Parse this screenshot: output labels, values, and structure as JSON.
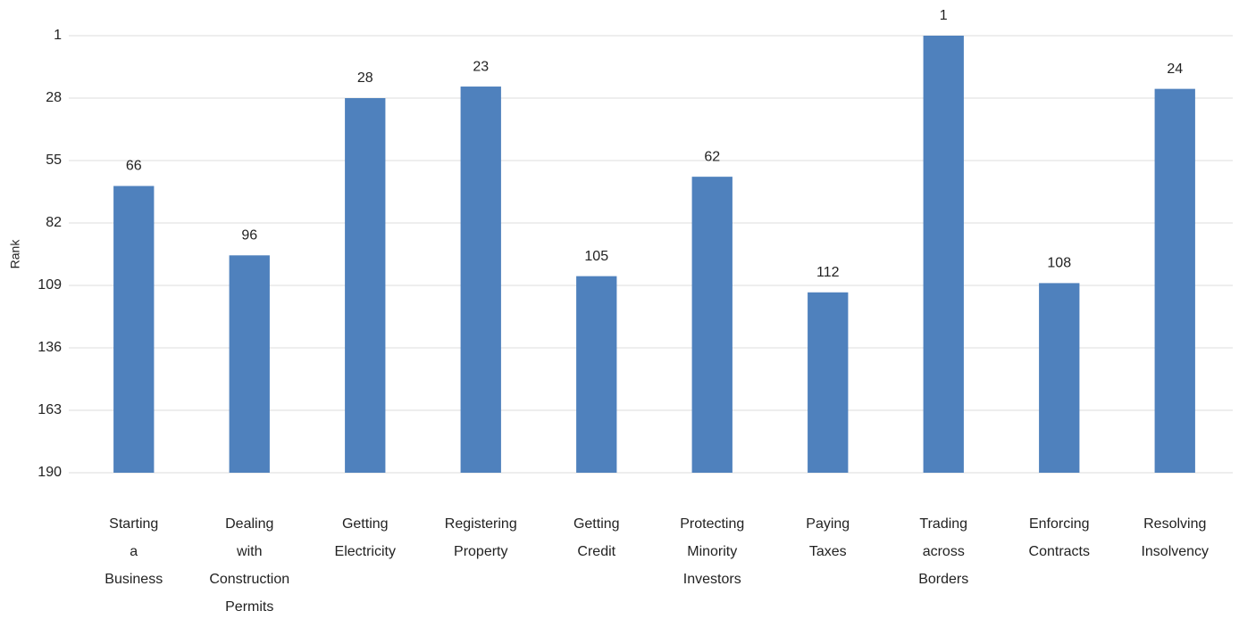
{
  "chart_data": {
    "type": "bar",
    "y_label": "Rank",
    "categories": [
      "Starting a Business",
      "Dealing with Construction Permits",
      "Getting Electricity",
      "Registering Property",
      "Getting Credit",
      "Protecting Minority Investors",
      "Paying Taxes",
      "Trading across Borders",
      "Enforcing Contracts",
      "Resolving Insolvency"
    ],
    "values": [
      66,
      96,
      28,
      23,
      105,
      62,
      112,
      1,
      108,
      24
    ],
    "color": "#4f81bd",
    "ylim": [
      190,
      1
    ],
    "yticks": [
      1,
      28,
      55,
      82,
      109,
      136,
      163,
      190
    ],
    "grid": true
  }
}
